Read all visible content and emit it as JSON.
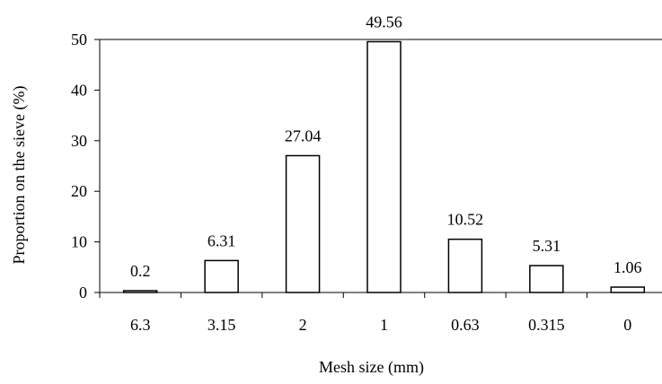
{
  "chart_data": {
    "type": "bar",
    "categories": [
      "6.3",
      "3.15",
      "2",
      "1",
      "0.63",
      "0.315",
      "0"
    ],
    "values": [
      0.2,
      6.31,
      27.04,
      49.56,
      10.52,
      5.31,
      1.06
    ],
    "data_labels": [
      "0.2",
      "6.31",
      "27.04",
      "49.56",
      "10.52",
      "5.31",
      "1.06"
    ],
    "title": "",
    "xlabel": "Mesh size (mm)",
    "ylabel": "Proportion on the sieve (%)",
    "ylim": [
      0,
      50
    ],
    "yticks": [
      0,
      10,
      20,
      30,
      40,
      50
    ],
    "ytick_labels": [
      "0",
      "10",
      "20",
      "30",
      "40",
      "50"
    ],
    "grid": false,
    "legend": "none",
    "bar_fill": "#ffffff",
    "bar_stroke": "#000000"
  }
}
